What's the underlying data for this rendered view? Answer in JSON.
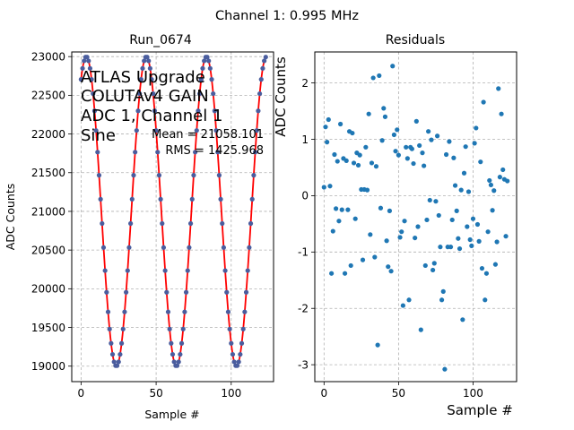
{
  "figure": {
    "suptitle": "Channel 1: 0.995 MHz"
  },
  "chart_data": [
    {
      "type": "scatter",
      "title": "Run_0674",
      "xlabel": "Sample #",
      "ylabel": "ADC Counts",
      "xlim": [
        -6.2,
        128.2
      ],
      "ylim": [
        18800,
        23060
      ],
      "xticks": [
        0,
        50,
        100
      ],
      "yticks": [
        19000,
        19500,
        20000,
        20500,
        21000,
        21500,
        22000,
        22500,
        23000
      ],
      "grid": true,
      "annotation_lines": [
        "ATLAS Upgrade",
        "COLUTAv4 GAIN",
        "ADC 1, Channel 1",
        "Sine"
      ],
      "stats": [
        "Mean = 21058.101",
        "RMS = 1425.968"
      ],
      "fit": {
        "model": "sine",
        "mean": 21000,
        "amplitude": 2000,
        "period": 40,
        "phase_peak_sample": 3.5,
        "color": "#ff0000"
      },
      "marker_color": "#4a5d9e",
      "n_samples": 124
    },
    {
      "type": "scatter",
      "title": "Residuals",
      "xlabel": "Sample #",
      "ylabel": "ADC Counts",
      "xlim": [
        -6.2,
        129.2
      ],
      "ylim": [
        -3.3,
        2.55
      ],
      "xticks": [
        0,
        50,
        100
      ],
      "yticks": [
        -3,
        -2,
        -1,
        0,
        1,
        2
      ],
      "grid": true,
      "marker_color": "#1f77b4",
      "points": [
        [
          0,
          0.15
        ],
        [
          1,
          1.22
        ],
        [
          2,
          0.95
        ],
        [
          3,
          1.35
        ],
        [
          4,
          0.17
        ],
        [
          5,
          -1.38
        ],
        [
          6,
          -0.63
        ],
        [
          7,
          0.73
        ],
        [
          8,
          -0.23
        ],
        [
          9,
          0.61
        ],
        [
          10,
          -0.45
        ],
        [
          11,
          1.27
        ],
        [
          12,
          -0.25
        ],
        [
          13,
          0.66
        ],
        [
          14,
          -1.38
        ],
        [
          15,
          0.62
        ],
        [
          16,
          -0.25
        ],
        [
          17,
          1.14
        ],
        [
          18,
          -1.24
        ],
        [
          19,
          1.11
        ],
        [
          20,
          0.58
        ],
        [
          21,
          -0.41
        ],
        [
          22,
          0.76
        ],
        [
          23,
          0.54
        ],
        [
          24,
          0.72
        ],
        [
          25,
          0.11
        ],
        [
          26,
          -1.14
        ],
        [
          27,
          0.11
        ],
        [
          28,
          0.86
        ],
        [
          29,
          0.1
        ],
        [
          30,
          1.45
        ],
        [
          31,
          -0.69
        ],
        [
          32,
          0.58
        ],
        [
          33,
          2.09
        ],
        [
          34,
          -1.09
        ],
        [
          35,
          0.52
        ],
        [
          36,
          -2.65
        ],
        [
          37,
          2.13
        ],
        [
          38,
          -0.22
        ],
        [
          39,
          0.98
        ],
        [
          40,
          1.55
        ],
        [
          41,
          1.4
        ],
        [
          42,
          -0.8
        ],
        [
          43,
          -1.26
        ],
        [
          44,
          -0.27
        ],
        [
          45,
          -1.34
        ],
        [
          46,
          2.3
        ],
        [
          47,
          1.08
        ],
        [
          48,
          0.79
        ],
        [
          49,
          1.17
        ],
        [
          50,
          0.72
        ],
        [
          51,
          -0.74
        ],
        [
          52,
          -0.64
        ],
        [
          53,
          -1.95
        ],
        [
          54,
          -0.45
        ],
        [
          55,
          0.86
        ],
        [
          56,
          0.66
        ],
        [
          57,
          -1.85
        ],
        [
          58,
          0.86
        ],
        [
          59,
          0.83
        ],
        [
          60,
          0.57
        ],
        [
          61,
          -0.75
        ],
        [
          62,
          1.32
        ],
        [
          63,
          -0.55
        ],
        [
          64,
          0.89
        ],
        [
          65,
          -2.38
        ],
        [
          66,
          0.76
        ],
        [
          67,
          0.53
        ],
        [
          68,
          -1.24
        ],
        [
          69,
          -0.43
        ],
        [
          70,
          1.14
        ],
        [
          71,
          -0.08
        ],
        [
          72,
          0.99
        ],
        [
          73,
          -1.32
        ],
        [
          74,
          -1.2
        ],
        [
          75,
          -0.1
        ],
        [
          76,
          1.06
        ],
        [
          77,
          -0.35
        ],
        [
          78,
          -0.91
        ],
        [
          79,
          -1.85
        ],
        [
          80,
          -1.7
        ],
        [
          81,
          -3.08
        ],
        [
          82,
          0.73
        ],
        [
          83,
          -0.91
        ],
        [
          84,
          0.96
        ],
        [
          85,
          -0.91
        ],
        [
          86,
          -0.43
        ],
        [
          87,
          0.67
        ],
        [
          88,
          0.18
        ],
        [
          89,
          -0.27
        ],
        [
          90,
          -0.76
        ],
        [
          91,
          -0.94
        ],
        [
          92,
          0.1
        ],
        [
          93,
          -2.2
        ],
        [
          94,
          0.4
        ],
        [
          95,
          0.87
        ],
        [
          96,
          -0.55
        ],
        [
          97,
          0.07
        ],
        [
          98,
          -0.78
        ],
        [
          99,
          -0.89
        ],
        [
          100,
          -0.41
        ],
        [
          101,
          0.93
        ],
        [
          102,
          1.2
        ],
        [
          103,
          -0.51
        ],
        [
          104,
          -0.81
        ],
        [
          105,
          0.6
        ],
        [
          106,
          -1.29
        ],
        [
          107,
          1.66
        ],
        [
          108,
          -1.85
        ],
        [
          109,
          -1.38
        ],
        [
          110,
          -0.64
        ],
        [
          111,
          0.27
        ],
        [
          112,
          0.19
        ],
        [
          113,
          -0.26
        ],
        [
          114,
          0.09
        ],
        [
          115,
          -1.22
        ],
        [
          116,
          -0.82
        ],
        [
          117,
          1.9
        ],
        [
          118,
          0.33
        ],
        [
          119,
          1.45
        ],
        [
          120,
          0.46
        ],
        [
          121,
          0.29
        ],
        [
          122,
          -0.72
        ],
        [
          123,
          0.26
        ]
      ]
    }
  ]
}
